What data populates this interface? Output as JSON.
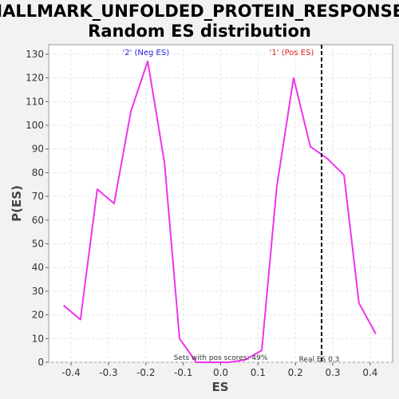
{
  "chart_data": {
    "type": "line",
    "title_line1": "HALLMARK_UNFOLDED_PROTEIN_RESPONSE:",
    "title_line2": "Random ES distribution",
    "xlabel": "ES",
    "ylabel": "P(ES)",
    "xlim": [
      -0.46,
      0.46
    ],
    "ylim": [
      0,
      134
    ],
    "xticks": [
      -0.4,
      -0.3,
      -0.2,
      -0.1,
      0.0,
      0.1,
      0.2,
      0.3,
      0.4
    ],
    "xtick_labels": [
      "-0.4",
      "-0.3",
      "-0.2",
      "-0.1",
      "0.0",
      "0.1",
      "0.2",
      "0.3",
      "0.4"
    ],
    "yticks": [
      0,
      10,
      20,
      30,
      40,
      50,
      60,
      70,
      80,
      90,
      100,
      110,
      120,
      130
    ],
    "ytick_labels": [
      "0",
      "10",
      "20",
      "30",
      "40",
      "50",
      "60",
      "70",
      "80",
      "90",
      "100",
      "110",
      "120",
      "130"
    ],
    "grid": true,
    "series": [
      {
        "color": "#ee33ee",
        "x": [
          -0.42,
          -0.375,
          -0.33,
          -0.285,
          -0.24,
          -0.195,
          -0.15,
          -0.11,
          -0.065,
          -0.02,
          0.02,
          0.065,
          0.11,
          0.15,
          0.195,
          0.24,
          0.285,
          0.33,
          0.37,
          0.415
        ],
        "y": [
          24,
          18,
          73,
          67,
          106,
          127,
          84,
          10,
          0,
          0,
          0,
          1,
          5,
          74,
          120,
          91,
          86,
          79,
          25,
          12
        ]
      }
    ],
    "neg_label": "'2' (Neg ES)",
    "neg_label_x": -0.2,
    "neg_color": "#2222dd",
    "pos_label": "'1' (Pos ES)",
    "pos_label_x": 0.19,
    "pos_color": "#dd2222",
    "real_es": 0.27,
    "real_es_label": "Real ES 0.3",
    "pos_scores_text": "Sets with pos scores: 49%",
    "pos_scores_x": 0.0
  }
}
